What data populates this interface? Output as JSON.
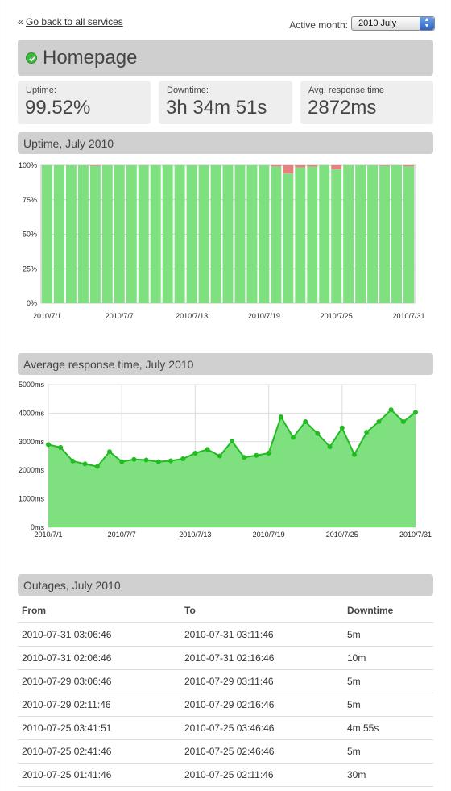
{
  "nav": {
    "back_prefix": "«",
    "back_link": "Go back to all services"
  },
  "month": {
    "label": "Active month:",
    "value": "2010 July",
    "arrows_icon": "updown-arrows-icon"
  },
  "service": {
    "name": "Homepage",
    "status_icon": "check-circle-icon",
    "status_color": "#3fb83f"
  },
  "stats": {
    "uptime": {
      "label": "Uptime:",
      "value": "99.52%"
    },
    "downtime": {
      "label": "Downtime:",
      "value": "3h 34m 51s"
    },
    "response": {
      "label": "Avg. response time",
      "value": "2872ms"
    }
  },
  "sections": {
    "uptime_title": "Uptime, July 2010",
    "response_title": "Average response time, July 2010",
    "outages_title": "Outages, July 2010"
  },
  "chart_data": [
    {
      "type": "bar",
      "x": [
        "2010/7/1",
        "2010/7/2",
        "2010/7/3",
        "2010/7/4",
        "2010/7/5",
        "2010/7/6",
        "2010/7/7",
        "2010/7/8",
        "2010/7/9",
        "2010/7/10",
        "2010/7/11",
        "2010/7/12",
        "2010/7/13",
        "2010/7/14",
        "2010/7/15",
        "2010/7/16",
        "2010/7/17",
        "2010/7/18",
        "2010/7/19",
        "2010/7/20",
        "2010/7/21",
        "2010/7/22",
        "2010/7/23",
        "2010/7/24",
        "2010/7/25",
        "2010/7/26",
        "2010/7/27",
        "2010/7/28",
        "2010/7/29",
        "2010/7/30",
        "2010/7/31"
      ],
      "series": [
        {
          "values": [
            100,
            100,
            100,
            100,
            99.5,
            100,
            100,
            100,
            100,
            100,
            100,
            100,
            100,
            100,
            100,
            100,
            100,
            100,
            100,
            99,
            94,
            98.5,
            99,
            100,
            97,
            100,
            100,
            100,
            99.5,
            100,
            99.2
          ],
          "color": "#7fe07f"
        }
      ],
      "downtime_color": "#e88080",
      "x_tick_labels": [
        "2010/7/1",
        "2010/7/7",
        "2010/7/13",
        "2010/7/19",
        "2010/7/25",
        "2010/7/31"
      ],
      "y_tick_labels": [
        "0%",
        "25%",
        "50%",
        "75%",
        "100%"
      ],
      "ylim": [
        0,
        100
      ],
      "grid": true
    },
    {
      "type": "area",
      "x": [
        "2010/7/1",
        "2010/7/2",
        "2010/7/3",
        "2010/7/4",
        "2010/7/5",
        "2010/7/6",
        "2010/7/7",
        "2010/7/8",
        "2010/7/9",
        "2010/7/10",
        "2010/7/11",
        "2010/7/12",
        "2010/7/13",
        "2010/7/14",
        "2010/7/15",
        "2010/7/16",
        "2010/7/17",
        "2010/7/18",
        "2010/7/19",
        "2010/7/20",
        "2010/7/21",
        "2010/7/22",
        "2010/7/23",
        "2010/7/24",
        "2010/7/25",
        "2010/7/26",
        "2010/7/27",
        "2010/7/28",
        "2010/7/29",
        "2010/7/30",
        "2010/7/31"
      ],
      "series": [
        {
          "values": [
            2900,
            2800,
            2320,
            2220,
            2130,
            2650,
            2300,
            2380,
            2360,
            2300,
            2330,
            2400,
            2600,
            2730,
            2500,
            3020,
            2450,
            2520,
            2600,
            3870,
            3150,
            3700,
            3280,
            2820,
            3480,
            2550,
            3330,
            3700,
            4120,
            3700,
            4030
          ],
          "color": "#22bb22",
          "fill": "#7fe07f"
        }
      ],
      "x_tick_labels": [
        "2010/7/1",
        "2010/7/7",
        "2010/7/13",
        "2010/7/19",
        "2010/7/25",
        "2010/7/31"
      ],
      "y_tick_labels": [
        "0ms",
        "1000ms",
        "2000ms",
        "3000ms",
        "4000ms",
        "5000ms"
      ],
      "ylim": [
        0,
        5000
      ],
      "grid": true
    }
  ],
  "outages": {
    "columns": [
      "From",
      "To",
      "Downtime"
    ],
    "rows": [
      [
        "2010-07-31 03:06:46",
        "2010-07-31 03:11:46",
        "5m"
      ],
      [
        "2010-07-31 02:06:46",
        "2010-07-31 02:16:46",
        "10m"
      ],
      [
        "2010-07-29 03:06:46",
        "2010-07-29 03:11:46",
        "5m"
      ],
      [
        "2010-07-29 02:11:46",
        "2010-07-29 02:16:46",
        "5m"
      ],
      [
        "2010-07-25 03:41:51",
        "2010-07-25 03:46:46",
        "4m 55s"
      ],
      [
        "2010-07-25 02:41:46",
        "2010-07-25 02:46:46",
        "5m"
      ],
      [
        "2010-07-25 01:41:46",
        "2010-07-25 02:11:46",
        "30m"
      ]
    ]
  }
}
